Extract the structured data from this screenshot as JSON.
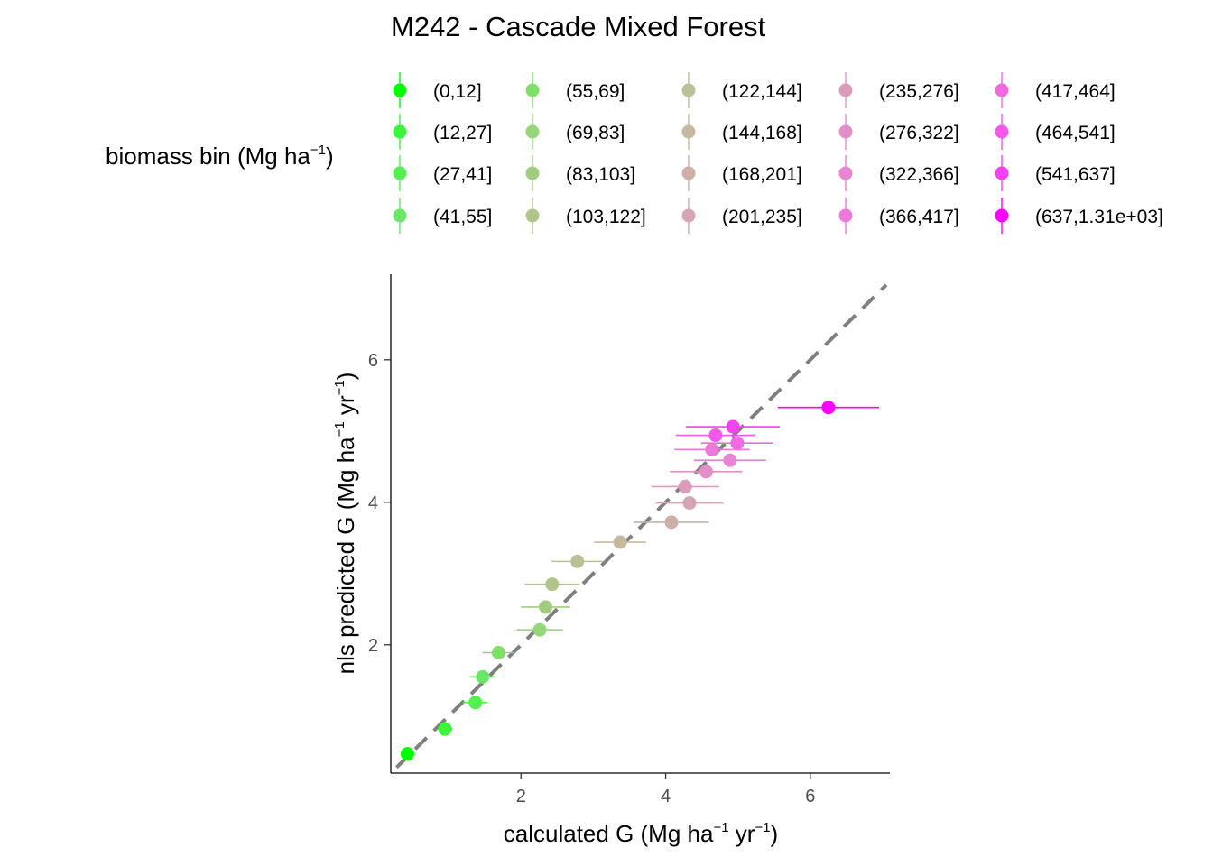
{
  "chart_data": {
    "type": "scatter",
    "title": "M242 - Cascade Mixed Forest",
    "xlabel": {
      "base": "calculated G (Mg ha",
      "exp1": "−1",
      "mid": " yr",
      "exp2": "−1",
      "end": ")"
    },
    "ylabel": {
      "base": "nls predicted G (Mg ha",
      "exp1": "−1",
      "mid": " yr",
      "exp2": "−1",
      "end": ")"
    },
    "xlim": [
      0.2,
      7.1
    ],
    "ylim": [
      0.2,
      7.2
    ],
    "x_ticks": [
      2,
      4,
      6
    ],
    "y_ticks": [
      2,
      4,
      6
    ],
    "x_tick_labels": [
      "2",
      "4",
      "6"
    ],
    "y_tick_labels": [
      "2",
      "4",
      "6"
    ],
    "reference_line": {
      "type": "identity",
      "style": "dashed",
      "color": "#7f7f7f"
    },
    "grid": false,
    "legend": {
      "title": {
        "base": "biomass bin (Mg ha",
        "exp": "−1",
        "end": ")"
      },
      "placement": "top",
      "columns": 5
    },
    "series": [
      {
        "name": "(0,12]",
        "color": "#00ff00",
        "x": 0.43,
        "y": 0.47,
        "xerr": 0.06
      },
      {
        "name": "(12,27]",
        "color": "#3bf53b",
        "x": 0.95,
        "y": 0.82,
        "xerr": 0.1
      },
      {
        "name": "(27,41]",
        "color": "#55ee55",
        "x": 1.37,
        "y": 1.19,
        "xerr": 0.17
      },
      {
        "name": "(41,55]",
        "color": "#6ae66a",
        "x": 1.47,
        "y": 1.55,
        "xerr": 0.17
      },
      {
        "name": "(55,69]",
        "color": "#80df68",
        "x": 1.69,
        "y": 1.89,
        "xerr": 0.22
      },
      {
        "name": "(69,83]",
        "color": "#94d679",
        "x": 2.26,
        "y": 2.21,
        "xerr": 0.32
      },
      {
        "name": "(83,103]",
        "color": "#a3cc83",
        "x": 2.34,
        "y": 2.53,
        "xerr": 0.34
      },
      {
        "name": "(103,122]",
        "color": "#b0c48b",
        "x": 2.43,
        "y": 2.85,
        "xerr": 0.38
      },
      {
        "name": "(122,144]",
        "color": "#bcc098",
        "x": 2.78,
        "y": 3.17,
        "xerr": 0.36
      },
      {
        "name": "(144,168]",
        "color": "#c6b9a0",
        "x": 3.37,
        "y": 3.44,
        "xerr": 0.36
      },
      {
        "name": "(168,201]",
        "color": "#ceafa7",
        "x": 4.08,
        "y": 3.72,
        "xerr": 0.52
      },
      {
        "name": "(201,235]",
        "color": "#d6a5b3",
        "x": 4.33,
        "y": 3.99,
        "xerr": 0.47
      },
      {
        "name": "(235,276]",
        "color": "#db9cbb",
        "x": 4.27,
        "y": 4.22,
        "xerr": 0.47
      },
      {
        "name": "(276,322]",
        "color": "#e28fc9",
        "x": 4.56,
        "y": 4.43,
        "xerr": 0.5
      },
      {
        "name": "(322,366]",
        "color": "#e884d4",
        "x": 4.89,
        "y": 4.59,
        "xerr": 0.5
      },
      {
        "name": "(366,417]",
        "color": "#ec79db",
        "x": 4.64,
        "y": 4.74,
        "xerr": 0.52
      },
      {
        "name": "(417,464]",
        "color": "#ef6ae3",
        "x": 4.99,
        "y": 4.83,
        "xerr": 0.5
      },
      {
        "name": "(464,541]",
        "color": "#f358ea",
        "x": 4.69,
        "y": 4.94,
        "xerr": 0.55
      },
      {
        "name": "(541,637]",
        "color": "#f640f2",
        "x": 4.93,
        "y": 5.06,
        "xerr": 0.65
      },
      {
        "name": "(637,1.31e+03]",
        "color": "#ff00ff",
        "x": 6.25,
        "y": 5.33,
        "xerr": 0.7
      }
    ]
  }
}
